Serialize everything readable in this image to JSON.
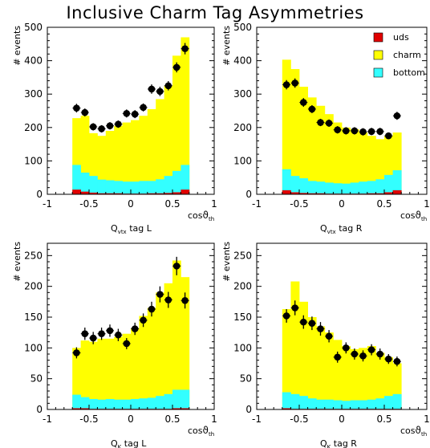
{
  "title": "Inclusive Charm Tag Asymmetries",
  "legend_items": [
    {
      "label": "uds",
      "color": "#e00000"
    },
    {
      "label": "charm",
      "color": "#ffff00"
    },
    {
      "label": "bottom",
      "color": "#33ffff"
    }
  ],
  "chart_data": [
    {
      "type": "bar",
      "panel": "top-left",
      "xlabel": "Q",
      "xlabel_sub": "vtx",
      "xlabel_suffix": " tag L",
      "ylabel": "# events",
      "x_axis_label": "cos",
      "x_axis_label_sub": "th",
      "xlim": [
        -1,
        1
      ],
      "ylim": [
        0,
        500
      ],
      "xticks": [
        "-1",
        "-0.5",
        "0",
        "0.5",
        "1"
      ],
      "yticks": [
        "0",
        "100",
        "200",
        "300",
        "400",
        "500"
      ],
      "bin_edges": [
        -0.7,
        -0.6,
        -0.5,
        -0.4,
        -0.3,
        -0.2,
        -0.1,
        0.0,
        0.1,
        0.2,
        0.3,
        0.4,
        0.5,
        0.6,
        0.7
      ],
      "stack": {
        "uds": [
          14,
          8,
          5,
          3,
          3,
          3,
          2,
          2,
          2,
          3,
          3,
          4,
          6,
          14
        ],
        "bottom": [
          88,
          65,
          55,
          44,
          42,
          40,
          38,
          38,
          40,
          40,
          45,
          55,
          70,
          88
        ],
        "total": [
          228,
          235,
          183,
          175,
          190,
          205,
          215,
          222,
          235,
          255,
          285,
          325,
          415,
          470
        ]
      },
      "data_points": {
        "x": [
          -0.65,
          -0.55,
          -0.45,
          -0.35,
          -0.25,
          -0.15,
          -0.05,
          0.05,
          0.15,
          0.25,
          0.35,
          0.45,
          0.55,
          0.65
        ],
        "y": [
          258,
          245,
          202,
          196,
          205,
          210,
          242,
          240,
          260,
          315,
          308,
          325,
          380,
          436
        ],
        "err": [
          13,
          12,
          11,
          11,
          11,
          11,
          12,
          12,
          12,
          14,
          14,
          14,
          15,
          17
        ]
      }
    },
    {
      "type": "bar",
      "panel": "top-right",
      "xlabel": "Q",
      "xlabel_sub": "vtx",
      "xlabel_suffix": " tag R",
      "ylabel": "# events",
      "x_axis_label": "cos",
      "x_axis_label_sub": "th",
      "xlim": [
        -1,
        1
      ],
      "ylim": [
        0,
        500
      ],
      "xticks": [
        "-1",
        "-0.5",
        "0",
        "0.5",
        "1"
      ],
      "yticks": [
        "0",
        "100",
        "200",
        "300",
        "400",
        "500"
      ],
      "bin_edges": [
        -0.7,
        -0.6,
        -0.5,
        -0.4,
        -0.3,
        -0.2,
        -0.1,
        0.0,
        0.1,
        0.2,
        0.3,
        0.4,
        0.5,
        0.6,
        0.7
      ],
      "stack": {
        "uds": [
          12,
          6,
          4,
          3,
          3,
          2,
          2,
          2,
          2,
          2,
          3,
          3,
          6,
          12
        ],
        "bottom": [
          75,
          55,
          48,
          40,
          38,
          35,
          33,
          32,
          35,
          38,
          40,
          45,
          58,
          72
        ],
        "total": [
          403,
          375,
          322,
          290,
          265,
          240,
          215,
          200,
          195,
          185,
          175,
          165,
          175,
          185
        ]
      },
      "data_points": {
        "x": [
          -0.65,
          -0.55,
          -0.45,
          -0.35,
          -0.25,
          -0.15,
          -0.05,
          0.05,
          0.15,
          0.25,
          0.35,
          0.45,
          0.55,
          0.65
        ],
        "y": [
          328,
          333,
          275,
          255,
          215,
          213,
          193,
          190,
          190,
          187,
          188,
          188,
          175,
          235
        ],
        "err": [
          14,
          14,
          13,
          12,
          11,
          11,
          11,
          11,
          11,
          11,
          11,
          11,
          10,
          12
        ]
      }
    },
    {
      "type": "bar",
      "panel": "bottom-left",
      "xlabel": "Q",
      "xlabel_sub": "K",
      "xlabel_suffix": " tag L",
      "ylabel": "# events",
      "x_axis_label": "cos",
      "x_axis_label_sub": "th",
      "xlim": [
        -1,
        1
      ],
      "ylim": [
        0,
        270
      ],
      "xticks": [
        "-1",
        "-0.5",
        "0",
        "0.5",
        "1"
      ],
      "yticks": [
        "0",
        "50",
        "100",
        "150",
        "200",
        "250"
      ],
      "bin_edges": [
        -0.7,
        -0.6,
        -0.5,
        -0.4,
        -0.3,
        -0.2,
        -0.1,
        0.0,
        0.1,
        0.2,
        0.3,
        0.4,
        0.5,
        0.6,
        0.7
      ],
      "stack": {
        "uds": [
          2,
          2,
          1,
          1,
          1,
          1,
          1,
          1,
          1,
          1,
          1,
          1,
          2,
          2
        ],
        "bottom": [
          24,
          20,
          17,
          16,
          17,
          16,
          16,
          17,
          18,
          19,
          22,
          25,
          32,
          32
        ],
        "total": [
          100,
          112,
          110,
          115,
          115,
          118,
          123,
          132,
          152,
          165,
          190,
          205,
          242,
          215
        ]
      },
      "data_points": {
        "x": [
          -0.65,
          -0.55,
          -0.45,
          -0.35,
          -0.25,
          -0.15,
          -0.05,
          0.05,
          0.15,
          0.25,
          0.35,
          0.45,
          0.55,
          0.65
        ],
        "y": [
          92,
          123,
          116,
          123,
          128,
          121,
          107,
          131,
          145,
          163,
          187,
          178,
          233,
          177
        ],
        "err": [
          9,
          10,
          10,
          10,
          10,
          10,
          9,
          10,
          11,
          12,
          13,
          13,
          15,
          13
        ]
      }
    },
    {
      "type": "bar",
      "panel": "bottom-right",
      "xlabel": "Q",
      "xlabel_sub": "K",
      "xlabel_suffix": " tag R",
      "ylabel": "# events",
      "x_axis_label": "cos",
      "x_axis_label_sub": "th",
      "xlim": [
        -1,
        1
      ],
      "ylim": [
        0,
        270
      ],
      "xticks": [
        "-1",
        "-0.5",
        "0",
        "0.5",
        "1"
      ],
      "yticks": [
        "0",
        "50",
        "100",
        "150",
        "200",
        "250"
      ],
      "bin_edges": [
        -0.7,
        -0.6,
        -0.5,
        -0.4,
        -0.3,
        -0.2,
        -0.1,
        0.0,
        0.1,
        0.2,
        0.3,
        0.4,
        0.5,
        0.6,
        0.7
      ],
      "stack": {
        "uds": [
          2,
          1,
          1,
          1,
          1,
          1,
          1,
          1,
          1,
          1,
          1,
          1,
          1,
          1
        ],
        "bottom": [
          28,
          25,
          22,
          18,
          16,
          16,
          15,
          14,
          15,
          15,
          16,
          18,
          22,
          25
        ],
        "total": [
          163,
          208,
          175,
          150,
          135,
          125,
          113,
          103,
          98,
          100,
          103,
          92,
          85,
          75
        ]
      },
      "data_points": {
        "x": [
          -0.65,
          -0.55,
          -0.45,
          -0.35,
          -0.25,
          -0.15,
          -0.05,
          0.05,
          0.15,
          0.25,
          0.35,
          0.45,
          0.55,
          0.65
        ],
        "y": [
          152,
          165,
          142,
          140,
          131,
          119,
          85,
          100,
          90,
          87,
          97,
          90,
          82,
          78
        ],
        "err": [
          11,
          12,
          11,
          11,
          11,
          10,
          9,
          9,
          9,
          9,
          9,
          9,
          8,
          8
        ]
      }
    }
  ]
}
